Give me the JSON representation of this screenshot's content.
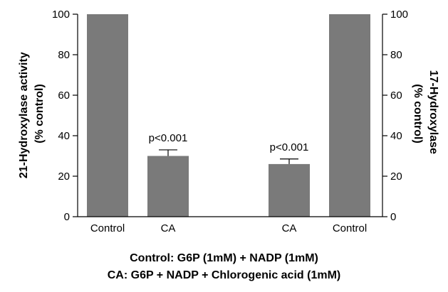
{
  "chart_data": {
    "type": "bar",
    "categories": [
      "Control",
      "CA",
      "CA",
      "Control"
    ],
    "values": [
      100,
      30,
      26,
      100
    ],
    "error_upper": [
      null,
      33,
      28.5,
      null
    ],
    "annotations": [
      "",
      "p<0.001",
      "p<0.001",
      ""
    ],
    "ylabel_left_lines": [
      "21-Hydroxylase activity",
      "(% control)"
    ],
    "ylabel_right_lines": [
      "17-Hydroxylase",
      "(% control)"
    ],
    "ylim": [
      0,
      100
    ],
    "yticks": [
      0,
      20,
      40,
      60,
      80,
      100
    ],
    "bar_color": "#7a7a7a",
    "caption_lines": [
      "Control: G6P (1mM) + NADP (1mM)",
      "CA: G6P + NADP + Chlorogenic acid (1mM)"
    ]
  }
}
